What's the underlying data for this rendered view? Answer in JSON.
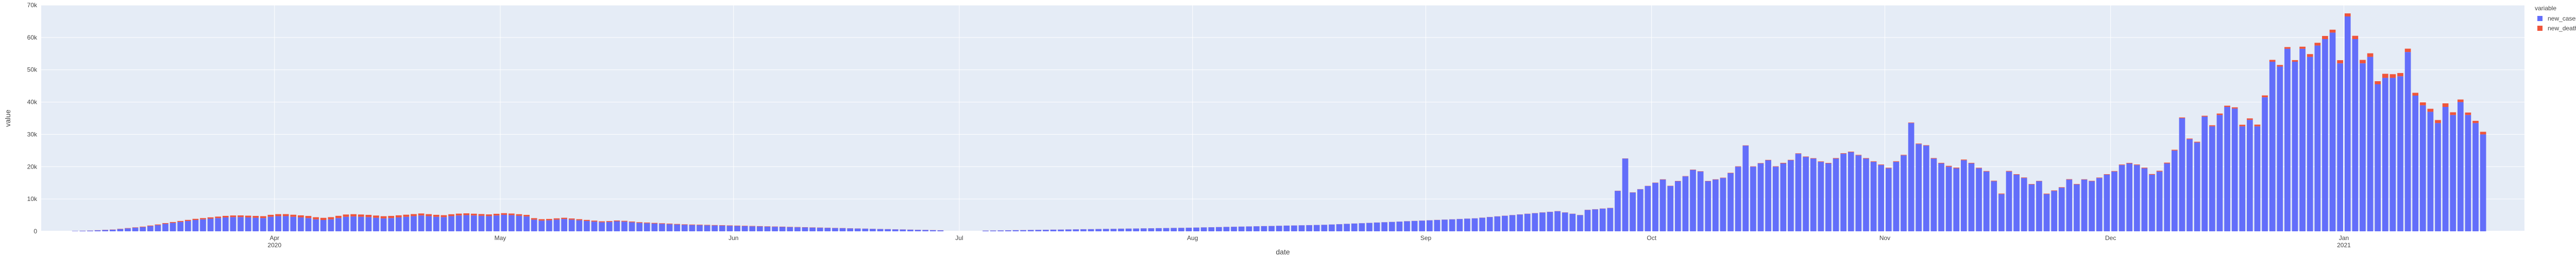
{
  "chart_data": {
    "type": "bar",
    "stacked": true,
    "xlabel": "date",
    "ylabel": "value",
    "ylim": [
      0,
      70000
    ],
    "yticks": [
      0,
      10000,
      20000,
      30000,
      40000,
      50000,
      60000,
      70000
    ],
    "ytick_labels": [
      "0",
      "10k",
      "20k",
      "30k",
      "40k",
      "50k",
      "60k",
      "70k"
    ],
    "xticks": [
      {
        "date": "2020-04-01",
        "label": "Apr",
        "sublabel": "2020"
      },
      {
        "date": "2020-05-01",
        "label": "May",
        "sublabel": ""
      },
      {
        "date": "2020-06-01",
        "label": "Jun",
        "sublabel": ""
      },
      {
        "date": "2020-07-01",
        "label": "Jul",
        "sublabel": ""
      },
      {
        "date": "2020-08-01",
        "label": "Aug",
        "sublabel": ""
      },
      {
        "date": "2020-09-01",
        "label": "Sep",
        "sublabel": ""
      },
      {
        "date": "2020-10-01",
        "label": "Oct",
        "sublabel": ""
      },
      {
        "date": "2020-11-01",
        "label": "Nov",
        "sublabel": ""
      },
      {
        "date": "2020-12-01",
        "label": "Dec",
        "sublabel": ""
      },
      {
        "date": "2021-01-01",
        "label": "Jan",
        "sublabel": "2021"
      }
    ],
    "x_start": "2020-03-01",
    "x_end": "2021-01-24",
    "legend": {
      "title": "variable",
      "placement": "top-right"
    },
    "series": [
      {
        "name": "new_cases",
        "color": "#636efa",
        "values": [
          0,
          0,
          0,
          0,
          100,
          150,
          200,
          300,
          400,
          500,
          700,
          900,
          1100,
          1300,
          1600,
          1900,
          2300,
          2600,
          2900,
          3200,
          3500,
          3700,
          3900,
          4100,
          4300,
          4400,
          4400,
          4300,
          4200,
          4100,
          4500,
          4700,
          4700,
          4500,
          4300,
          4100,
          3700,
          3500,
          3700,
          4100,
          4500,
          4600,
          4500,
          4400,
          4200,
          4000,
          4100,
          4300,
          4500,
          4700,
          4900,
          4700,
          4500,
          4400,
          4700,
          4900,
          5000,
          4900,
          4800,
          4700,
          4900,
          5100,
          5000,
          4800,
          4600,
          3600,
          3300,
          3400,
          3600,
          3800,
          3600,
          3400,
          3200,
          3000,
          2800,
          2900,
          3100,
          3000,
          2800,
          2600,
          2500,
          2400,
          2300,
          2200,
          2100,
          2000,
          1950,
          1900,
          1850,
          1800,
          1750,
          1700,
          1650,
          1600,
          1550,
          1500,
          1450,
          1400,
          1350,
          1300,
          1250,
          1200,
          1150,
          1100,
          1050,
          1000,
          950,
          900,
          850,
          800,
          750,
          700,
          650,
          600,
          550,
          500,
          450,
          400,
          350,
          300,
          0,
          0,
          0,
          0,
          0,
          200,
          230,
          260,
          300,
          330,
          360,
          400,
          430,
          460,
          500,
          530,
          560,
          600,
          630,
          660,
          700,
          730,
          760,
          800,
          830,
          860,
          900,
          930,
          960,
          1000,
          1030,
          1060,
          1100,
          1150,
          1200,
          1250,
          1300,
          1350,
          1400,
          1450,
          1500,
          1550,
          1600,
          1650,
          1700,
          1750,
          1800,
          1850,
          1900,
          1950,
          2000,
          2100,
          2200,
          2300,
          2400,
          2500,
          2600,
          2700,
          2800,
          2900,
          3000,
          3100,
          3200,
          3300,
          3400,
          3500,
          3600,
          3700,
          3800,
          3900,
          4000,
          4200,
          4400,
          4600,
          4800,
          5000,
          5200,
          5400,
          5600,
          5800,
          6000,
          6200,
          5800,
          5400,
          5000,
          6600,
          6800,
          7000,
          7200,
          12500,
          22500,
          12000,
          13000,
          14000,
          15000,
          16000,
          14000,
          15500,
          17000,
          19000,
          18500,
          15500,
          16000,
          16500,
          18000,
          20000,
          26500,
          20000,
          21000,
          22000,
          20000,
          21000,
          22000,
          24000,
          23000,
          22500,
          21500,
          21000,
          22500,
          24000,
          24500,
          23500,
          22500,
          21500,
          20500,
          19500,
          21500,
          23500,
          33500,
          27000,
          26500,
          22500,
          21000,
          20000,
          19500,
          22000,
          21000,
          19500,
          18500,
          15500,
          11500,
          18500,
          17500,
          16500,
          14500,
          15500,
          11500,
          12500,
          13500,
          16000,
          14500,
          16000,
          15500,
          16500,
          17500,
          18500,
          20500,
          21000,
          20500,
          19500,
          17500,
          18500,
          21000,
          25000,
          35000,
          28500,
          27500,
          35500,
          32500,
          36000,
          38500,
          38000,
          32500,
          34500,
          32500,
          41500,
          52500,
          51000,
          56500,
          52500,
          56500,
          54000,
          57500,
          59500,
          61500,
          52000,
          66500,
          59500,
          52000,
          54000,
          45500,
          47500,
          47500,
          48000,
          55500,
          42000,
          39000,
          37000,
          33500,
          38500,
          36000,
          40000,
          36000,
          33500,
          30000
        ]
      },
      {
        "name": "new_deaths",
        "color": "#ef553b",
        "values": [
          0,
          0,
          0,
          0,
          10,
          20,
          30,
          40,
          50,
          60,
          80,
          100,
          120,
          150,
          180,
          210,
          240,
          270,
          300,
          330,
          360,
          390,
          420,
          450,
          480,
          500,
          520,
          540,
          560,
          580,
          600,
          610,
          620,
          630,
          640,
          650,
          660,
          670,
          680,
          690,
          700,
          700,
          700,
          690,
          680,
          670,
          660,
          650,
          640,
          630,
          620,
          610,
          600,
          590,
          580,
          570,
          560,
          550,
          540,
          530,
          520,
          510,
          500,
          490,
          480,
          470,
          450,
          430,
          410,
          390,
          370,
          350,
          330,
          310,
          290,
          270,
          250,
          240,
          230,
          220,
          210,
          200,
          190,
          180,
          170,
          160,
          150,
          145,
          140,
          135,
          130,
          125,
          120,
          115,
          110,
          105,
          100,
          95,
          90,
          85,
          80,
          75,
          70,
          65,
          60,
          55,
          50,
          45,
          40,
          35,
          30,
          30,
          30,
          30,
          30,
          30,
          30,
          30,
          30,
          30,
          0,
          0,
          0,
          0,
          0,
          20,
          20,
          20,
          20,
          20,
          20,
          20,
          20,
          20,
          20,
          20,
          20,
          20,
          20,
          20,
          20,
          20,
          20,
          20,
          20,
          20,
          20,
          20,
          20,
          20,
          20,
          20,
          20,
          20,
          20,
          20,
          20,
          20,
          20,
          20,
          20,
          20,
          20,
          20,
          20,
          20,
          20,
          20,
          20,
          20,
          20,
          20,
          20,
          20,
          20,
          20,
          20,
          20,
          20,
          20,
          20,
          30,
          30,
          30,
          30,
          30,
          30,
          30,
          30,
          30,
          30,
          40,
          40,
          40,
          40,
          40,
          40,
          50,
          50,
          50,
          50,
          50,
          50,
          50,
          50,
          50,
          50,
          50,
          60,
          60,
          60,
          60,
          60,
          60,
          80,
          100,
          80,
          90,
          90,
          100,
          100,
          90,
          100,
          110,
          120,
          120,
          100,
          110,
          110,
          120,
          130,
          180,
          130,
          140,
          150,
          140,
          150,
          160,
          170,
          170,
          160,
          160,
          160,
          170,
          180,
          180,
          180,
          170,
          160,
          160,
          150,
          170,
          180,
          260,
          220,
          210,
          180,
          170,
          160,
          160,
          190,
          180,
          170,
          160,
          140,
          110,
          170,
          160,
          150,
          140,
          150,
          110,
          130,
          140,
          170,
          150,
          170,
          170,
          180,
          200,
          210,
          240,
          250,
          240,
          230,
          210,
          220,
          260,
          320,
          450,
          380,
          370,
          480,
          450,
          520,
          560,
          560,
          480,
          520,
          490,
          640,
          850,
          850,
          960,
          900,
          970,
          950,
          1010,
          1050,
          1100,
          960,
          1250,
          1130,
          990,
          1030,
          870,
          910,
          920,
          940,
          1100,
          840,
          790,
          760,
          690,
          800,
          760,
          850,
          770,
          720,
          650
        ]
      }
    ]
  }
}
